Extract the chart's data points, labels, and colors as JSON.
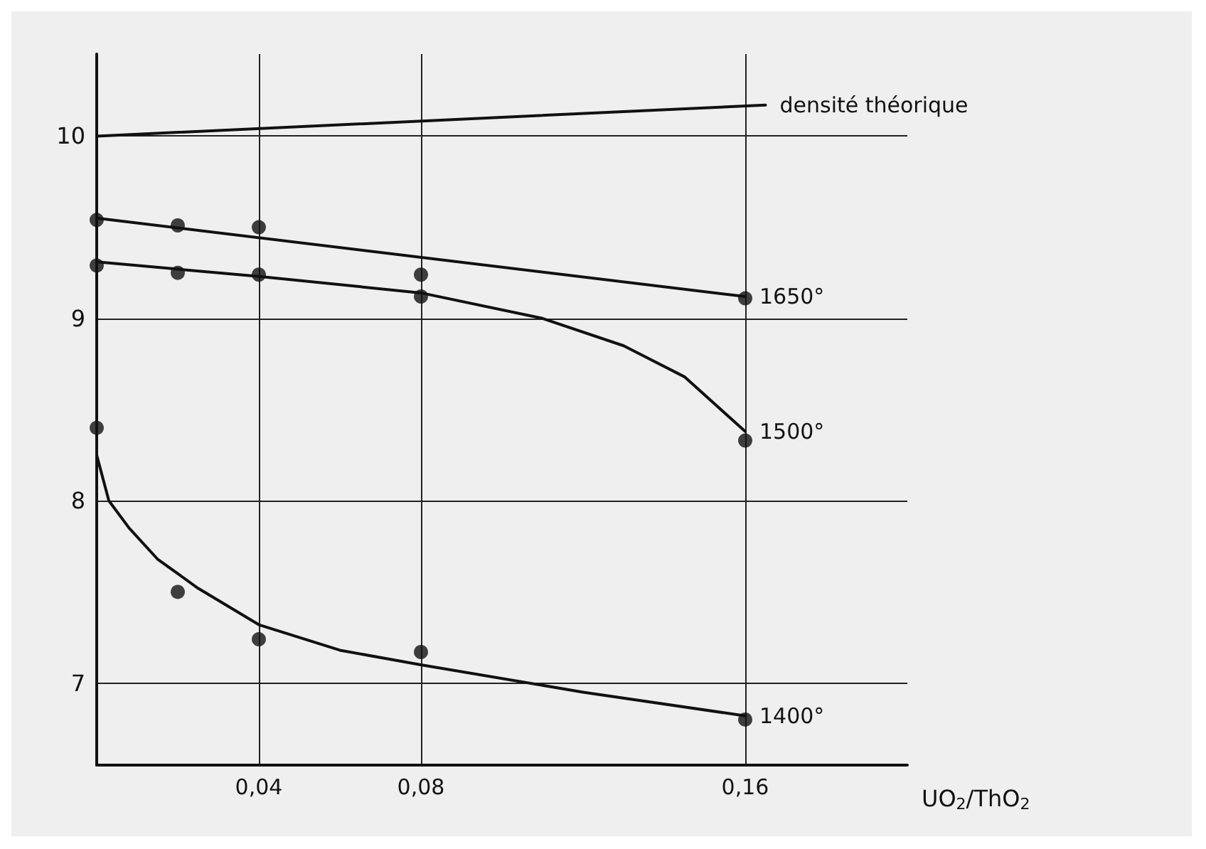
{
  "chart_data": {
    "type": "scatter",
    "xlabel": "UO$_{2}$/ThO$_{2}$",
    "xlim": [
      0,
      0.2
    ],
    "ylim": [
      6.55,
      10.45
    ],
    "xticks": [
      {
        "value": 0.04,
        "label": "0,04"
      },
      {
        "value": 0.08,
        "label": "0,08"
      },
      {
        "value": 0.16,
        "label": "0,16"
      }
    ],
    "yticks": [
      7,
      8,
      9,
      10
    ],
    "grid": true,
    "legend": false,
    "marker": "circle",
    "series": [
      {
        "type": "line",
        "name": "densité théorique",
        "color": "#111111",
        "x": [
          0,
          0.165
        ],
        "values": [
          10.0,
          10.17
        ],
        "marker": "none"
      },
      {
        "color": "#111111",
        "x": [
          0,
          0.02,
          0.04,
          0.08,
          0.16
        ],
        "values": [
          9.54,
          9.51,
          9.5,
          9.24,
          9.11
        ]
      },
      {
        "type": "line",
        "name": "1650°",
        "color": "#111111",
        "x": [
          0,
          0.16
        ],
        "values": [
          9.55,
          9.12
        ],
        "marker": "none"
      },
      {
        "color": "#111111",
        "x": [
          0,
          0.02,
          0.04,
          0.08,
          0.16
        ],
        "values": [
          9.29,
          9.25,
          9.24,
          9.12,
          8.33
        ]
      },
      {
        "type": "line",
        "name": "1500°",
        "color": "#111111",
        "x": [
          0,
          0.04,
          0.08,
          0.11,
          0.13,
          0.145,
          0.16
        ],
        "values": [
          9.31,
          9.23,
          9.14,
          9.0,
          8.85,
          8.68,
          8.38
        ],
        "marker": "none"
      },
      {
        "color": "#111111",
        "x": [
          0,
          0.02,
          0.04,
          0.08,
          0.16
        ],
        "values": [
          8.4,
          7.5,
          7.24,
          7.17,
          6.8
        ]
      },
      {
        "type": "line",
        "name": "1400°",
        "color": "#111111",
        "x": [
          0,
          0.003,
          0.008,
          0.015,
          0.025,
          0.04,
          0.06,
          0.08,
          0.12,
          0.16
        ],
        "values": [
          8.25,
          8.0,
          7.85,
          7.68,
          7.52,
          7.32,
          7.18,
          7.1,
          6.95,
          6.82
        ],
        "marker": "none"
      }
    ]
  }
}
